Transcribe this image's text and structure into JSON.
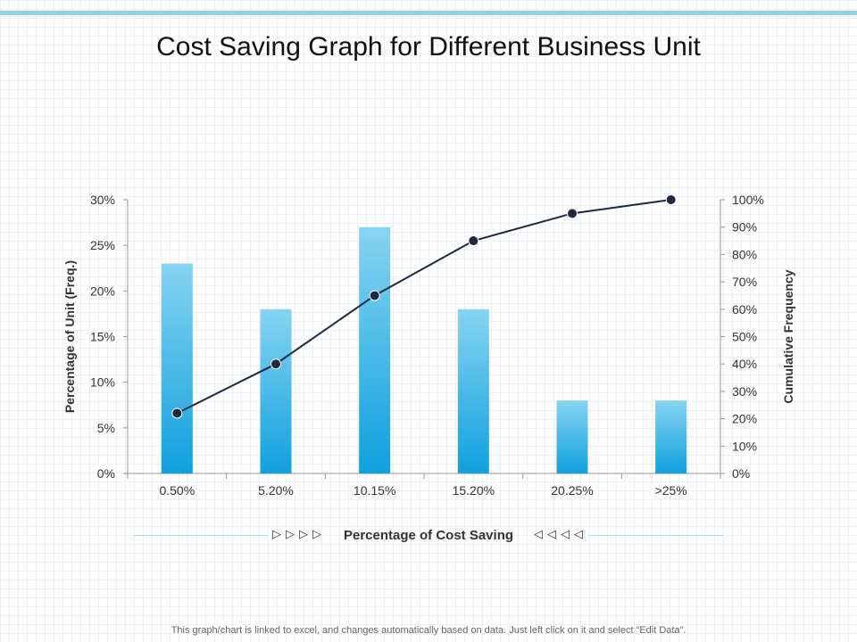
{
  "chart_data": {
    "type": "bar",
    "title": "Cost Saving Graph for Different Business Unit",
    "xlabel": "Percentage of Cost Saving",
    "ylabel": "Percentage of Unit (Freq.)",
    "y2label": "Cumulative Frequency",
    "categories": [
      "0.50%",
      "5.20%",
      "10.15%",
      "15.20%",
      "20.25%",
      ">25%"
    ],
    "series": [
      {
        "type": "bar",
        "axis": "left",
        "values": [
          23,
          18,
          27,
          18,
          8,
          8
        ]
      },
      {
        "type": "line",
        "axis": "right",
        "values": [
          22,
          40,
          65,
          85,
          95,
          100
        ]
      }
    ],
    "ylim": [
      0,
      30
    ],
    "yticks": [
      "0%",
      "5%",
      "10%",
      "15%",
      "20%",
      "25%",
      "30%"
    ],
    "y2lim": [
      0,
      100
    ],
    "y2ticks": [
      "0%",
      "10%",
      "20%",
      "30%",
      "40%",
      "50%",
      "60%",
      "70%",
      "80%",
      "90%",
      "100%"
    ],
    "grid": false,
    "legend": "none",
    "colors": {
      "bar_top": "#87d4f2",
      "bar_bottom": "#10a0de",
      "line": "#1b2a3e",
      "axis": "#999999"
    }
  },
  "footnote": "This graph/chart is linked to excel, and changes automatically based on data. Just left click on it and select “Edit Data”.",
  "decor": {
    "left_arrows": "▷▷▷▷",
    "right_arrows": "◁◁◁◁"
  }
}
